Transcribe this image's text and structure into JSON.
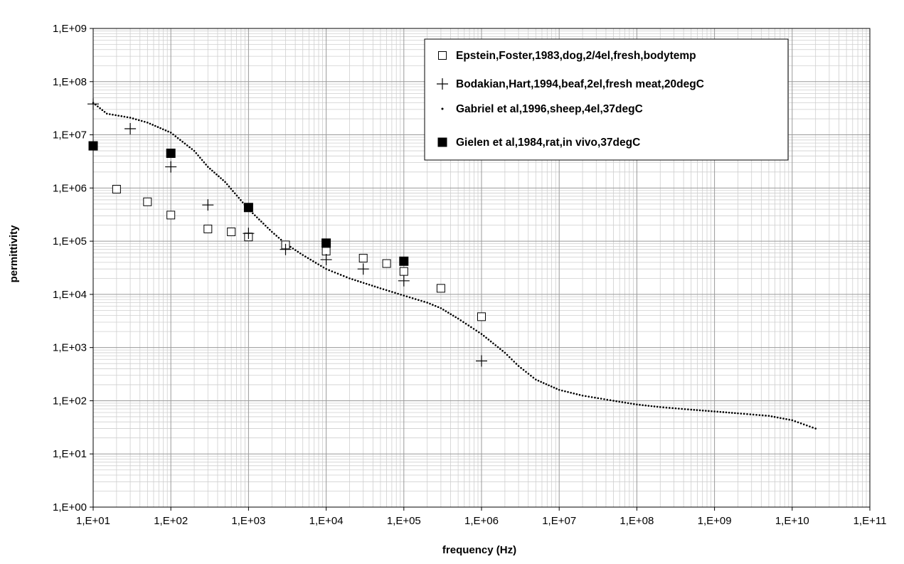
{
  "chart_data": {
    "type": "scatter",
    "xlabel": "frequency (Hz)",
    "ylabel": "permittivity",
    "x_scale": "log",
    "y_scale": "log",
    "xlim": [
      10,
      100000000000
    ],
    "ylim": [
      1,
      1000000000
    ],
    "x_tick_labels": [
      "1,E+01",
      "1,E+02",
      "1,E+03",
      "1,E+04",
      "1,E+05",
      "1,E+06",
      "1,E+07",
      "1,E+08",
      "1,E+09",
      "1,E+10",
      "1,E+11"
    ],
    "y_tick_labels": [
      "1,E+00",
      "1,E+01",
      "1,E+02",
      "1,E+03",
      "1,E+04",
      "1,E+05",
      "1,E+06",
      "1,E+07",
      "1,E+08",
      "1,E+09"
    ],
    "grid": true,
    "legend_position": "top-right",
    "series": [
      {
        "name": "Epstein,Foster,1983,dog,2/4el,fresh,bodytemp",
        "marker": "open-square",
        "color": "#000000",
        "points": [
          [
            20,
            950000
          ],
          [
            50,
            550000
          ],
          [
            100,
            310000
          ],
          [
            300,
            170000
          ],
          [
            600,
            150000
          ],
          [
            1000,
            120000
          ],
          [
            3000,
            85000
          ],
          [
            10000,
            65000
          ],
          [
            30000,
            48000
          ],
          [
            60000,
            38000
          ],
          [
            100000,
            27000
          ],
          [
            300000,
            13000
          ],
          [
            1000000,
            3800
          ]
        ]
      },
      {
        "name": "Bodakian,Hart,1994,beaf,2el,fresh meat,20degC",
        "marker": "plus",
        "color": "#000000",
        "points": [
          [
            10,
            38000000
          ],
          [
            30,
            13000000
          ],
          [
            100,
            2500000
          ],
          [
            300,
            480000
          ],
          [
            1000,
            140000
          ],
          [
            3000,
            70000
          ],
          [
            10000,
            45000
          ],
          [
            30000,
            30000
          ],
          [
            100000,
            18000
          ],
          [
            1000000,
            560
          ]
        ]
      },
      {
        "name": "Gabriel et al,1996,sheep,4el,37degC",
        "marker": "dot",
        "color": "#000000",
        "points": [
          [
            10,
            40000000
          ],
          [
            15,
            25000000
          ],
          [
            30,
            21000000
          ],
          [
            50,
            17000000
          ],
          [
            100,
            11000000
          ],
          [
            200,
            5000000
          ],
          [
            300,
            2500000
          ],
          [
            500,
            1300000
          ],
          [
            1000,
            400000
          ],
          [
            2000,
            150000
          ],
          [
            3000,
            90000
          ],
          [
            5000,
            55000
          ],
          [
            10000,
            30000
          ],
          [
            20000,
            20000
          ],
          [
            50000,
            13000
          ],
          [
            100000,
            9500
          ],
          [
            200000,
            7000
          ],
          [
            300000,
            5500
          ],
          [
            500000,
            3500
          ],
          [
            1000000,
            1800
          ],
          [
            2000000,
            800
          ],
          [
            3000000,
            450
          ],
          [
            5000000,
            250
          ],
          [
            10000000,
            160
          ],
          [
            20000000,
            125
          ],
          [
            50000000,
            100
          ],
          [
            100000000,
            85
          ],
          [
            200000000,
            76
          ],
          [
            500000000,
            68
          ],
          [
            1000000000,
            63
          ],
          [
            2000000000,
            58
          ],
          [
            5000000000,
            52
          ],
          [
            10000000000,
            43
          ],
          [
            20000000000,
            30
          ]
        ]
      },
      {
        "name": "Gielen et al,1984,rat,in vivo,37degC",
        "marker": "filled-square",
        "color": "#000000",
        "points": [
          [
            10,
            6200000
          ],
          [
            100,
            4500000
          ],
          [
            1000,
            430000
          ],
          [
            10000,
            92000
          ],
          [
            100000,
            42000
          ]
        ]
      }
    ]
  }
}
